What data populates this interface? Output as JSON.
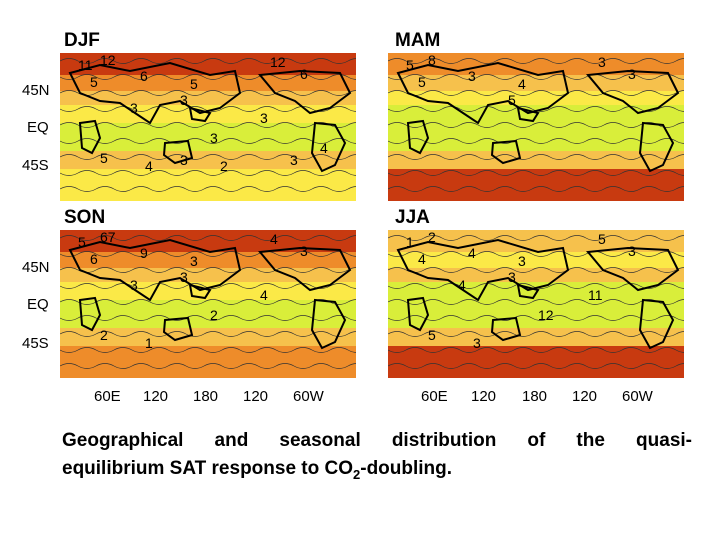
{
  "panels": [
    {
      "id": "djf",
      "title": "DJF",
      "labels": [
        "12",
        "11",
        "5",
        "6",
        "5",
        "12",
        "6",
        "3",
        "3",
        "3",
        "3",
        "5",
        "4",
        "3",
        "2",
        "3",
        "4"
      ],
      "band_colors": [
        "#c83a10",
        "#ee8c2a",
        "#f6c14c",
        "#fbe947",
        "#d9ee3a",
        "#f6c14c",
        "#fbe947"
      ]
    },
    {
      "id": "mam",
      "title": "MAM",
      "labels": [
        "8",
        "5",
        "5",
        "3",
        "4",
        "3",
        "3",
        "5"
      ],
      "band_colors": [
        "#ee8c2a",
        "#f6c14c",
        "#fbe947",
        "#d9ee3a",
        "#d9ee3a",
        "#f6c14c",
        "#c83a10"
      ]
    },
    {
      "id": "son",
      "title": "SON",
      "labels": [
        "67",
        "5",
        "6",
        "9",
        "3",
        "4",
        "3",
        "3",
        "3",
        "4",
        "2",
        "2",
        "1"
      ],
      "band_colors": [
        "#c83a10",
        "#ee8c2a",
        "#f6c14c",
        "#fbe947",
        "#d9ee3a",
        "#f6c14c",
        "#ee8c2a"
      ]
    },
    {
      "id": "jja",
      "title": "JJA",
      "labels": [
        "2",
        "1",
        "4",
        "4",
        "3",
        "5",
        "3",
        "3",
        "4",
        "11",
        "12",
        "5",
        "3"
      ],
      "band_colors": [
        "#f6c14c",
        "#fbe947",
        "#f6c14c",
        "#d9ee3a",
        "#d9ee3a",
        "#f6c14c",
        "#c83a10"
      ]
    }
  ],
  "lat_labels": [
    "45N",
    "EQ",
    "45S"
  ],
  "lon_labels": [
    "60E",
    "120",
    "180",
    "120",
    "60W"
  ],
  "caption": {
    "line1": "Geographical and seasonal distribution of the quasi-",
    "line2_pre": "equilibrium SAT response to CO",
    "line2_sub": "2",
    "line2_post": "-doubling."
  }
}
